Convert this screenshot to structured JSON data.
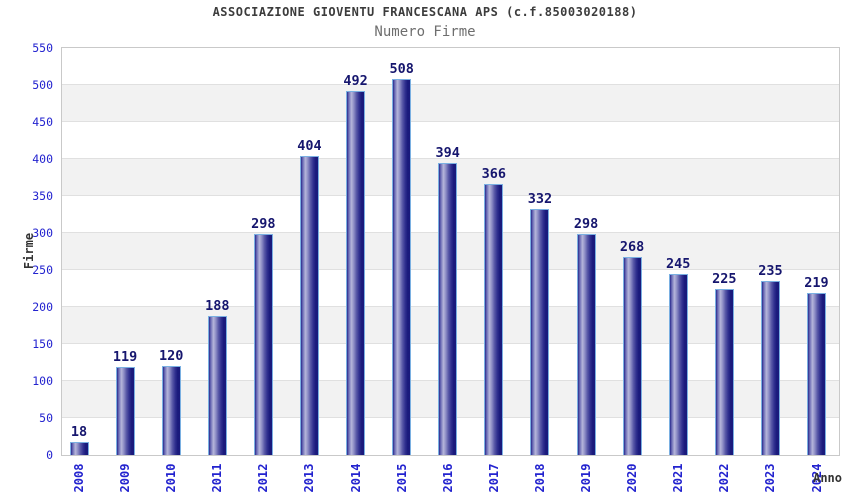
{
  "chart_data": {
    "type": "bar",
    "title": "ASSOCIAZIONE GIOVENTU FRANCESCANA APS (c.f.85003020188)",
    "subtitle": "Numero Firme",
    "xlabel": "Anno",
    "ylabel": "Firme",
    "categories": [
      "2008",
      "2009",
      "2010",
      "2011",
      "2012",
      "2013",
      "2014",
      "2015",
      "2016",
      "2017",
      "2018",
      "2019",
      "2020",
      "2021",
      "2022",
      "2023",
      "2024"
    ],
    "values": [
      18,
      119,
      120,
      188,
      298,
      404,
      492,
      508,
      394,
      366,
      332,
      298,
      268,
      245,
      225,
      235,
      219
    ],
    "ylim": [
      0,
      550
    ],
    "ytick_step": 50,
    "grid": "horizontal-bands-alternating",
    "legend": "none",
    "colors": {
      "bar_gradient_dark": "#28288c",
      "bar_gradient_light": "#b6b6da",
      "bar_gradient_end": "#1a1a7c",
      "bar_border": "#7ab0e2",
      "axis_tick_label": "#2323cf",
      "value_label": "#16166e",
      "title": "#3c3c3c",
      "subtitle": "#6e6e6e",
      "band_gray": "#f2f2f2",
      "band_white": "#ffffff",
      "gridline": "#e0e0e0",
      "plot_border": "#c9c9c9"
    }
  }
}
